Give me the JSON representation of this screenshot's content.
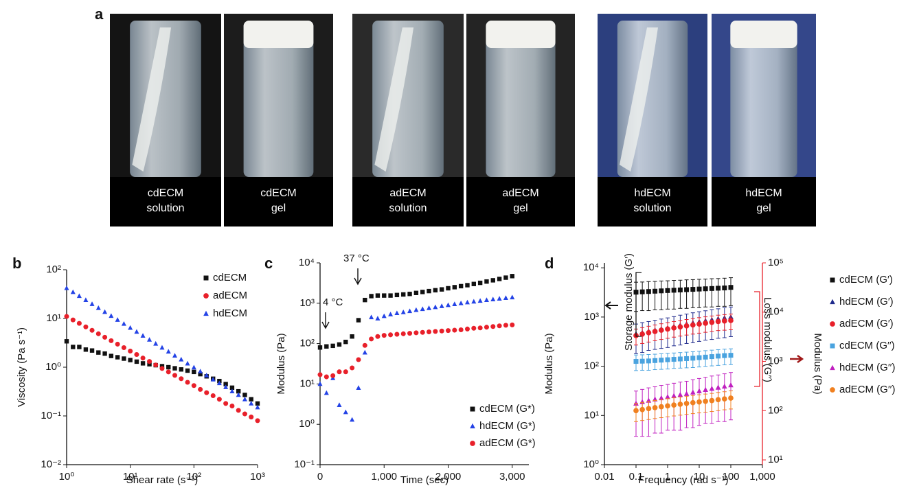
{
  "figure_a": {
    "label": "a",
    "photos": [
      {
        "caption": [
          "cdECM",
          "solution"
        ]
      },
      {
        "caption": [
          "cdECM",
          "gel"
        ]
      },
      {
        "caption": [
          "adECM",
          "solution"
        ]
      },
      {
        "caption": [
          "adECM",
          "gel"
        ]
      },
      {
        "caption": [
          "hdECM",
          "solution"
        ]
      },
      {
        "caption": [
          "hdECM",
          "gel"
        ]
      }
    ]
  },
  "chart_data": [
    {
      "type": "scatter",
      "label": "b",
      "xlabel": "Shear rate (s⁻¹)",
      "ylabel": "Viscosity (Pa s⁻¹)",
      "xscale": "log",
      "yscale": "log",
      "legend": "upper right",
      "xlim": [
        1,
        1000
      ],
      "ylim": [
        0.01,
        100
      ],
      "xticks": [
        {
          "value": 1,
          "label": "10⁰"
        },
        {
          "value": 10,
          "label": "10¹"
        },
        {
          "value": 100,
          "label": "10²"
        },
        {
          "value": 1000,
          "label": "10³"
        }
      ],
      "yticks": [
        {
          "value": 0.01,
          "label": "10⁻²"
        },
        {
          "value": 0.1,
          "label": "10⁻¹"
        },
        {
          "value": 1,
          "label": "10⁰"
        },
        {
          "value": 10,
          "label": "10¹"
        },
        {
          "value": 100,
          "label": "10²"
        }
      ],
      "x": [
        1,
        1.26,
        1.58,
        2,
        2.51,
        3.16,
        3.98,
        5.01,
        6.31,
        7.94,
        10,
        12.6,
        15.8,
        20,
        25.1,
        31.6,
        39.8,
        50.1,
        63.1,
        79.4,
        100,
        126,
        158,
        200,
        251,
        316,
        398,
        501,
        631,
        794,
        1000
      ],
      "series": [
        {
          "name": "cdECM",
          "color": "#111111",
          "marker": "square",
          "values": [
            3.4,
            2.6,
            2.6,
            2.3,
            2.2,
            2.0,
            1.9,
            1.7,
            1.6,
            1.5,
            1.4,
            1.3,
            1.2,
            1.15,
            1.1,
            1.05,
            1.0,
            0.95,
            0.9,
            0.85,
            0.8,
            0.72,
            0.65,
            0.58,
            0.52,
            0.45,
            0.38,
            0.32,
            0.27,
            0.22,
            0.18
          ]
        },
        {
          "name": "adECM",
          "color": "#e8202a",
          "marker": "circle",
          "values": [
            11,
            9.34,
            7.93,
            6.73,
            5.72,
            4.85,
            4.12,
            3.5,
            2.97,
            2.52,
            2.14,
            1.82,
            1.54,
            1.31,
            1.11,
            0.94,
            0.8,
            0.68,
            0.58,
            0.49,
            0.42,
            0.35,
            0.3,
            0.26,
            0.22,
            0.18,
            0.16,
            0.13,
            0.11,
            0.095,
            0.08
          ]
        },
        {
          "name": "hdECM",
          "color": "#2443e6",
          "marker": "triangle",
          "values": [
            42,
            34.8,
            28.9,
            23.9,
            19.8,
            16.4,
            13.6,
            11.3,
            9.37,
            7.77,
            6.44,
            5.34,
            4.43,
            3.67,
            3.04,
            2.52,
            2.09,
            1.73,
            1.44,
            1.19,
            0.99,
            0.82,
            0.68,
            0.56,
            0.47,
            0.39,
            0.32,
            0.27,
            0.22,
            0.18,
            0.15
          ]
        }
      ]
    },
    {
      "type": "scatter",
      "label": "c",
      "xlabel": "Time (sec)",
      "ylabel": "Modulus (Pa)",
      "xscale": "linear",
      "yscale": "log",
      "legend": "lower right",
      "xlim": [
        0,
        3260
      ],
      "ylim": [
        0.1,
        10000
      ],
      "xticks": [
        0,
        {
          "value": 1000,
          "label": "1,000"
        },
        {
          "value": 2000,
          "label": "2,000"
        },
        {
          "value": 3000,
          "label": "3,000"
        }
      ],
      "yticks": [
        {
          "value": 0.1,
          "label": "10⁻¹"
        },
        {
          "value": 1,
          "label": "10⁰"
        },
        {
          "value": 10,
          "label": "10¹"
        },
        {
          "value": 100,
          "label": "10²"
        },
        {
          "value": 1000,
          "label": "10³"
        },
        {
          "value": 10000,
          "label": "10⁴"
        }
      ],
      "annotations": [
        {
          "text": "4 °C"
        },
        {
          "text": "37 °C"
        }
      ],
      "x": [
        0,
        100,
        200,
        300,
        400,
        500,
        600,
        700,
        800,
        900,
        1000,
        1100,
        1200,
        1300,
        1400,
        1500,
        1600,
        1700,
        1800,
        1900,
        2000,
        2100,
        2200,
        2300,
        2400,
        2500,
        2600,
        2700,
        2800,
        2900,
        3000
      ],
      "series": [
        {
          "name": "cdECM (G*)",
          "color": "#111111",
          "marker": "square",
          "values": [
            80,
            85,
            88,
            95,
            110,
            150,
            380,
            1200,
            1500,
            1550,
            1550,
            1550,
            1600,
            1650,
            1700,
            1800,
            1900,
            2000,
            2100,
            2200,
            2350,
            2500,
            2650,
            2800,
            3000,
            3200,
            3450,
            3700,
            4000,
            4300,
            4700
          ]
        },
        {
          "name": "hdECM (G*)",
          "color": "#2443e6",
          "marker": "triangle",
          "values": [
            10,
            6,
            14,
            3,
            2,
            1.3,
            8,
            60,
            450,
            420,
            480,
            530,
            570,
            600,
            640,
            680,
            720,
            760,
            800,
            850,
            900,
            950,
            1000,
            1050,
            1100,
            1150,
            1200,
            1250,
            1300,
            1350,
            1400
          ]
        },
        {
          "name": "adECM (G*)",
          "color": "#e8202a",
          "marker": "circle",
          "values": [
            17,
            15,
            16,
            20,
            20,
            25,
            40,
            90,
            130,
            150,
            160,
            165,
            170,
            175,
            180,
            185,
            190,
            195,
            200,
            205,
            210,
            215,
            220,
            230,
            240,
            245,
            255,
            265,
            275,
            285,
            290
          ]
        }
      ]
    },
    {
      "type": "scatter",
      "label": "d",
      "xlabel": "Frequency (rad s⁻¹)",
      "ylabel": "Modulus (Pa)",
      "y2label": "Modulus (Pa)",
      "y2color": "#e8202a",
      "xscale": "log",
      "yscale": "log",
      "legend": "outside right",
      "xlim": [
        0.01,
        1000
      ],
      "ylim": [
        1,
        12600
      ],
      "y2lim": [
        8,
        100000
      ],
      "xticks": [
        0.01,
        0.1,
        1,
        10,
        100,
        {
          "value": 1000,
          "label": "1,000"
        }
      ],
      "yticks": [
        {
          "value": 1,
          "label": "10⁰"
        },
        {
          "value": 10,
          "label": "10¹"
        },
        {
          "value": 100,
          "label": "10²"
        },
        {
          "value": 1000,
          "label": "10³"
        },
        {
          "value": 10000,
          "label": "10⁴"
        }
      ],
      "y2ticks": [
        {
          "value": 10,
          "label": "10¹"
        },
        {
          "value": 100,
          "label": "10²"
        },
        {
          "value": 1000,
          "label": "10³"
        },
        {
          "value": 10000,
          "label": "10⁴"
        },
        {
          "value": 100000,
          "label": "10⁵"
        }
      ],
      "annotations": [
        {
          "text": "Storage modulus (G′)"
        },
        {
          "text": "Loss modulus (G′′)"
        }
      ],
      "x": [
        0.1,
        0.158,
        0.251,
        0.398,
        0.631,
        1,
        1.58,
        2.51,
        3.98,
        6.31,
        10,
        15.8,
        25.1,
        39.8,
        63.1,
        100
      ],
      "series": [
        {
          "name": "cdECM (G′)",
          "color": "#111111",
          "marker": "square",
          "values": [
            3200,
            3250,
            3300,
            3350,
            3400,
            3450,
            3500,
            3550,
            3600,
            3650,
            3700,
            3750,
            3800,
            3850,
            3900,
            4000
          ],
          "errors": [
            1900,
            1900,
            1950,
            1950,
            2000,
            2000,
            2050,
            2050,
            2100,
            2100,
            2150,
            2150,
            2200,
            2200,
            2250,
            2300
          ]
        },
        {
          "name": "hdECM (G′)",
          "color": "#1f2a8c",
          "marker": "triangle",
          "values": [
            450,
            480,
            510,
            540,
            570,
            600,
            640,
            680,
            720,
            760,
            800,
            840,
            880,
            920,
            960,
            1000
          ],
          "errors": [
            270,
            290,
            300,
            320,
            340,
            360,
            380,
            410,
            430,
            460,
            480,
            500,
            530,
            550,
            580,
            600
          ]
        },
        {
          "name": "adECM (G′)",
          "color": "#e8202a",
          "marker": "circle",
          "values": [
            420,
            450,
            480,
            510,
            540,
            570,
            600,
            630,
            660,
            690,
            720,
            750,
            780,
            810,
            830,
            850
          ],
          "errors": [
            150,
            160,
            170,
            180,
            190,
            200,
            210,
            220,
            230,
            240,
            250,
            260,
            270,
            280,
            290,
            300
          ]
        },
        {
          "name": "cdECM (G′′)",
          "color": "#4aa3df",
          "marker": "square",
          "axis": "y2",
          "values": [
            1000,
            1010,
            1020,
            1040,
            1060,
            1080,
            1100,
            1120,
            1140,
            1160,
            1190,
            1220,
            1250,
            1280,
            1310,
            1330
          ],
          "errors": [
            350,
            350,
            360,
            360,
            370,
            380,
            380,
            390,
            400,
            410,
            420,
            430,
            440,
            450,
            460,
            470
          ]
        },
        {
          "name": "hdECM (G′′)",
          "color": "#c020c0",
          "marker": "triangle",
          "axis": "y2",
          "values": [
            140,
            150,
            160,
            170,
            180,
            190,
            200,
            210,
            220,
            235,
            250,
            265,
            280,
            295,
            310,
            330
          ],
          "errors": [
            110,
            120,
            130,
            135,
            145,
            150,
            160,
            170,
            175,
            190,
            200,
            210,
            225,
            235,
            250,
            265
          ]
        },
        {
          "name": "adECM (G′′)",
          "color": "#f08020",
          "marker": "circle",
          "axis": "y2",
          "values": [
            100,
            105,
            110,
            115,
            120,
            125,
            130,
            135,
            140,
            145,
            150,
            155,
            160,
            167,
            173,
            180
          ],
          "errors": [
            40,
            42,
            44,
            46,
            48,
            50,
            52,
            54,
            56,
            58,
            60,
            62,
            64,
            67,
            69,
            72
          ]
        }
      ]
    }
  ]
}
